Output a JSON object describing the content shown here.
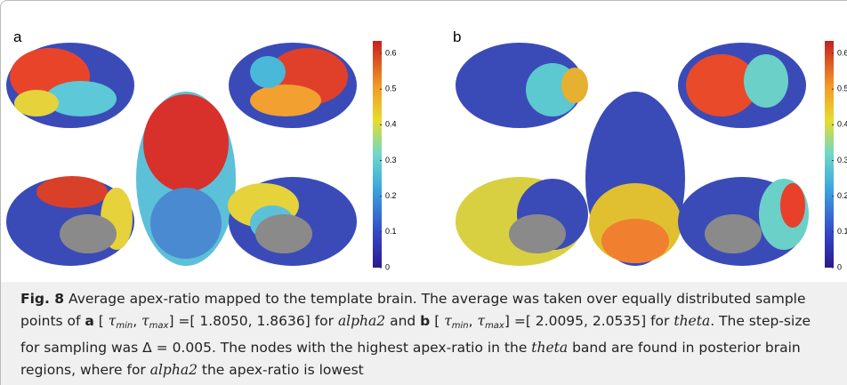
{
  "panels": [
    {
      "label": "a",
      "colorbar": {
        "lim": [
          0,
          0.635
        ],
        "ticks": [
          0,
          0.1,
          0.2,
          0.3,
          0.4,
          0.5,
          0.6
        ]
      }
    },
    {
      "label": "b",
      "colorbar": {
        "lim": [
          0,
          0.635
        ],
        "ticks": [
          0,
          0.1,
          0.2,
          0.3,
          0.4,
          0.5,
          0.6
        ]
      }
    }
  ],
  "caption": [
    {
      "text": "Fig. 8",
      "style": "bold"
    },
    {
      "text": "  Average apex-ratio mapped to the template brain. The average was taken over equally distributed sample points of "
    },
    {
      "text": "a",
      "style": "bold"
    },
    {
      "text": " [ "
    },
    {
      "text": "τ",
      "style": "italic"
    },
    {
      "text": "min",
      "style": "sub"
    },
    {
      "text": ", "
    },
    {
      "text": "τ",
      "style": "italic"
    },
    {
      "text": "max",
      "style": "sub"
    },
    {
      "text": "] =[ 1.8050, 1.8636] for "
    },
    {
      "text": "alpha2",
      "style": "italic"
    },
    {
      "text": " and "
    },
    {
      "text": "b",
      "style": "bold"
    },
    {
      "text": " [ "
    },
    {
      "text": "τ",
      "style": "italic"
    },
    {
      "text": "min",
      "style": "sub"
    },
    {
      "text": ", "
    },
    {
      "text": "τ",
      "style": "italic"
    },
    {
      "text": "max",
      "style": "sub"
    },
    {
      "text": "] =[ 2.0095, 2.0535] for "
    },
    {
      "text": "theta",
      "style": "italic"
    },
    {
      "text": ". The step-size for sampling was Δ = 0.005. The nodes with the highest apex-ratio in the "
    },
    {
      "text": "theta",
      "style": "italic"
    },
    {
      "text": " band are found in posterior brain regions, where for "
    },
    {
      "text": "alpha2",
      "style": "italic"
    },
    {
      "text": " the apex-ratio is lowest"
    }
  ]
}
